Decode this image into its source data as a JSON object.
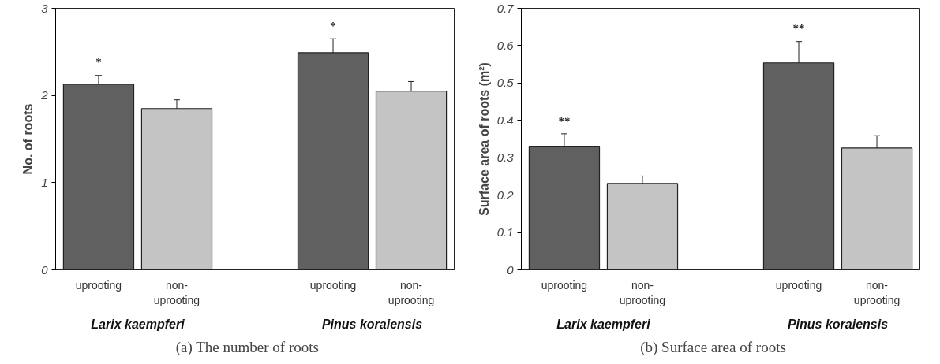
{
  "chart_data": [
    {
      "type": "bar",
      "title": "(a)  The  number  of  roots",
      "ylabel": "No. of roots",
      "categories": [
        "uprooting",
        "non-\nuprooting",
        "uprooting",
        "non-\nuprooting"
      ],
      "values": [
        2.13,
        1.85,
        2.49,
        2.05
      ],
      "errors": [
        0.1,
        0.1,
        0.16,
        0.11
      ],
      "colors": [
        "#606060",
        "#c4c4c4",
        "#606060",
        "#c4c4c4"
      ],
      "value_labels": [
        "*",
        null,
        "*",
        null
      ],
      "annotations": [
        "Larix kaempferi",
        "Pinus koraiensis"
      ],
      "ylim": [
        0,
        3
      ],
      "yticks": [
        0,
        1,
        2,
        3
      ]
    },
    {
      "type": "bar",
      "title": "(b)  Surface  area  of  roots",
      "ylabel": "Surface area of roots (m²)",
      "categories": [
        "uprooting",
        "non-\nuprooting",
        "uprooting",
        "non-\nuprooting"
      ],
      "values": [
        0.331,
        0.231,
        0.554,
        0.326
      ],
      "errors": [
        0.033,
        0.02,
        0.057,
        0.033
      ],
      "colors": [
        "#606060",
        "#c4c4c4",
        "#606060",
        "#c4c4c4"
      ],
      "value_labels": [
        "**",
        null,
        "**",
        null
      ],
      "annotations": [
        "Larix kaempferi",
        "Pinus koraiensis"
      ],
      "ylim": [
        0,
        0.7
      ],
      "yticks": [
        0,
        0.1,
        0.2,
        0.3,
        0.4,
        0.5,
        0.6,
        0.7
      ]
    }
  ]
}
